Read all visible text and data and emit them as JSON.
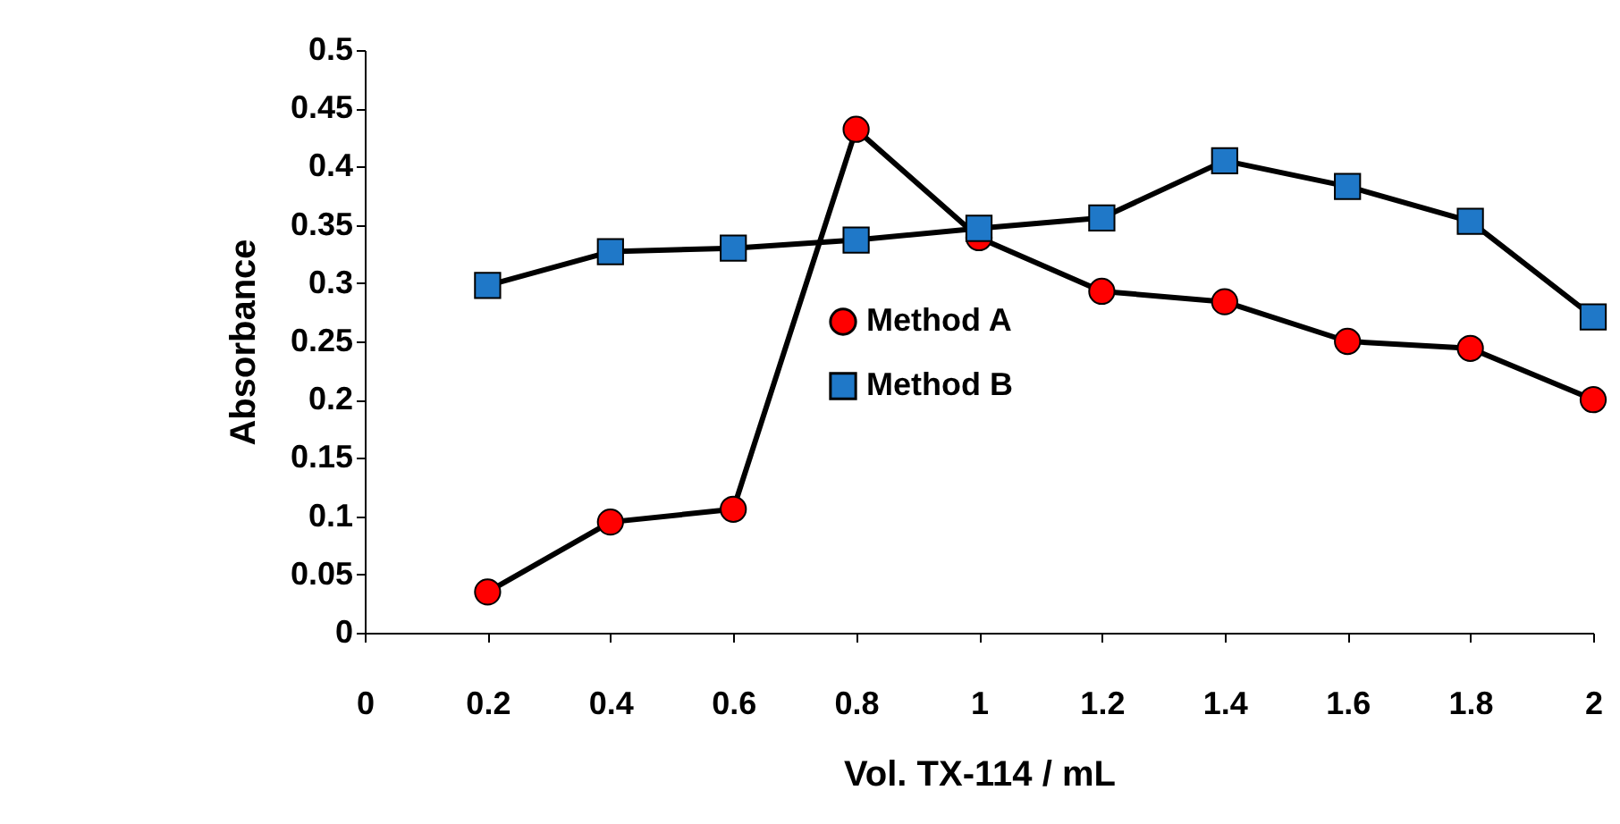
{
  "chart_data": {
    "type": "line",
    "xlabel": "Vol. TX-114 / mL",
    "ylabel": "Absorbance",
    "x": [
      0.2,
      0.4,
      0.6,
      0.8,
      1.0,
      1.2,
      1.4,
      1.6,
      1.8,
      2.0
    ],
    "series": [
      {
        "name": "Method A",
        "color": "#ff0000",
        "marker": "circle",
        "values": [
          0.035,
          0.095,
          0.106,
          0.432,
          0.339,
          0.293,
          0.284,
          0.25,
          0.244,
          0.2
        ]
      },
      {
        "name": "Method B",
        "color": "#1f78c8",
        "marker": "square",
        "values": [
          0.298,
          0.327,
          0.33,
          0.337,
          0.347,
          0.356,
          0.405,
          0.383,
          0.353,
          0.271
        ]
      }
    ],
    "xlim": [
      0,
      2
    ],
    "xticks": [
      0,
      0.2,
      0.4,
      0.6,
      0.8,
      1,
      1.2,
      1.4,
      1.6,
      1.8,
      2
    ],
    "ylim": [
      0,
      0.5
    ],
    "yticks": [
      0,
      0.05,
      0.1,
      0.15,
      0.2,
      0.25,
      0.3,
      0.35,
      0.4,
      0.45,
      0.5
    ],
    "grid": false,
    "legend": "center"
  }
}
